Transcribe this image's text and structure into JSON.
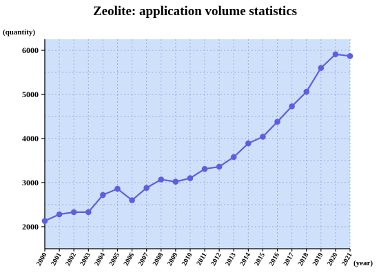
{
  "chart_data": {
    "type": "line",
    "title": "Zeolite: application volume statistics",
    "ylabel": "(quantity)",
    "xlabel": "(year)",
    "categories": [
      "2000",
      "2001",
      "2002",
      "2003",
      "2004",
      "2005",
      "2006",
      "2007",
      "2008",
      "2009",
      "2010",
      "2011",
      "2012",
      "2013",
      "2014",
      "2015",
      "2016",
      "2017",
      "2018",
      "2019",
      "2020",
      "2021"
    ],
    "series": [
      {
        "values": [
          2130,
          2280,
          2330,
          2330,
          2720,
          2860,
          2600,
          2880,
          3070,
          3020,
          3100,
          3310,
          3360,
          3580,
          3890,
          4040,
          4380,
          4730,
          5060,
          5600,
          5910,
          5870
        ]
      }
    ],
    "yticks": [
      2000,
      3000,
      4000,
      5000,
      6000
    ],
    "ylim": [
      1500,
      6250
    ],
    "grid": true,
    "colors": {
      "plot_bg": "#cfe0fb",
      "line": "#5b5fe0",
      "grid": "#8fb0e8"
    }
  }
}
